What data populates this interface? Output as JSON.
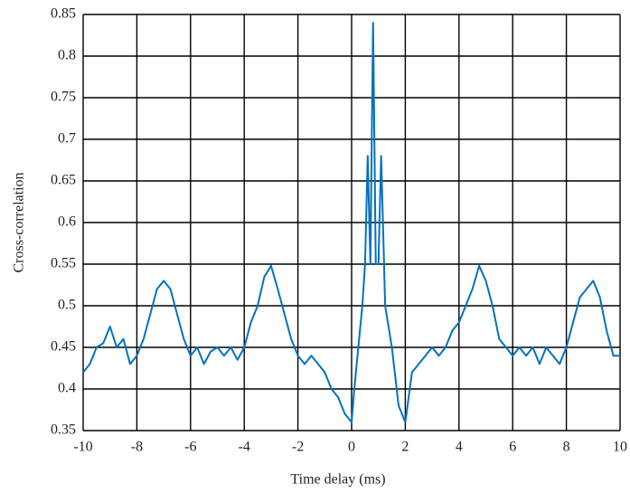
{
  "chart_data": {
    "type": "line",
    "xlabel": "Time delay (ms)",
    "ylabel": "Cross-correlation",
    "x": [
      -10,
      -9.75,
      -9.5,
      -9.25,
      -9,
      -8.75,
      -8.5,
      -8.25,
      -8,
      -7.75,
      -7.5,
      -7.25,
      -7,
      -6.75,
      -6.5,
      -6.25,
      -6,
      -5.75,
      -5.5,
      -5.25,
      -5,
      -4.75,
      -4.5,
      -4.25,
      -4,
      -3.75,
      -3.5,
      -3.25,
      -3,
      -2.75,
      -2.5,
      -2.25,
      -2,
      -1.75,
      -1.5,
      -1.25,
      -1,
      -0.75,
      -0.5,
      -0.25,
      0,
      0.1,
      0.25,
      0.4,
      0.5,
      0.6,
      0.7,
      0.8,
      0.9,
      1.0,
      1.1,
      1.25,
      1.5,
      1.75,
      2,
      2.25,
      2.5,
      2.75,
      3,
      3.25,
      3.5,
      3.75,
      4,
      4.25,
      4.5,
      4.75,
      5,
      5.25,
      5.5,
      5.75,
      6,
      6.25,
      6.5,
      6.75,
      7,
      7.25,
      7.5,
      7.75,
      8,
      8.25,
      8.5,
      8.75,
      9,
      9.25,
      9.5,
      9.75,
      10
    ],
    "series": [
      {
        "color": "#0072bd",
        "values": [
          0.42,
          0.43,
          0.45,
          0.455,
          0.475,
          0.45,
          0.46,
          0.43,
          0.44,
          0.46,
          0.49,
          0.52,
          0.53,
          0.52,
          0.49,
          0.46,
          0.44,
          0.45,
          0.43,
          0.445,
          0.45,
          0.44,
          0.45,
          0.435,
          0.45,
          0.48,
          0.5,
          0.535,
          0.548,
          0.52,
          0.49,
          0.46,
          0.44,
          0.43,
          0.44,
          0.43,
          0.42,
          0.4,
          0.39,
          0.37,
          0.36,
          0.4,
          0.45,
          0.5,
          0.55,
          0.68,
          0.55,
          0.84,
          0.55,
          0.55,
          0.68,
          0.5,
          0.45,
          0.38,
          0.36,
          0.42,
          0.43,
          0.44,
          0.45,
          0.44,
          0.45,
          0.47,
          0.48,
          0.5,
          0.52,
          0.548,
          0.53,
          0.5,
          0.46,
          0.45,
          0.44,
          0.45,
          0.44,
          0.45,
          0.43,
          0.45,
          0.44,
          0.43,
          0.45,
          0.48,
          0.51,
          0.52,
          0.53,
          0.51,
          0.47,
          0.44,
          0.44
        ]
      }
    ],
    "xlim": [
      -10,
      10
    ],
    "ylim": [
      0.35,
      0.85
    ],
    "xticks": [
      -10,
      -8,
      -6,
      -4,
      -2,
      0,
      2,
      4,
      6,
      8,
      10
    ],
    "yticks": [
      0.35,
      0.4,
      0.45,
      0.5,
      0.55,
      0.6,
      0.65,
      0.7,
      0.75,
      0.8,
      0.85
    ],
    "grid": true
  }
}
